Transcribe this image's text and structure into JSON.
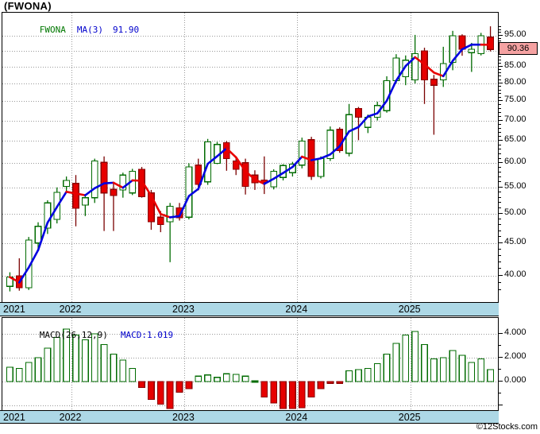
{
  "title": "(FWONA)",
  "watermark": "©12Stocks.com",
  "colors": {
    "up_outline": "#006B00",
    "up_fill": "#FFFFFF",
    "down_fill": "#E60000",
    "down_border": "#8B0000",
    "down_wick": "#7A0000",
    "ma_rising": "#0000E0",
    "ma_falling": "#E80000",
    "grid": "#999999",
    "axis_strip": "#ADD8E6",
    "badge_bg": "#F5A2A2",
    "legend_symbol": "#007700",
    "legend_blue": "#0000CC"
  },
  "main_chart": {
    "legend": {
      "symbol": "FWONA",
      "ma_label": "MA(3)",
      "ma_value": "91.90"
    },
    "price_axis": {
      "scale": "logarithmic",
      "last_price": 90.36,
      "last_price_label": "90.36"
    }
  },
  "chart_data": [
    {
      "type": "candlestick",
      "name": "FWONA monthly price",
      "title": "(FWONA)",
      "columns": [
        "open",
        "high",
        "low",
        "close"
      ],
      "candles": [
        [
          38.5,
          40.5,
          37.8,
          39.8
        ],
        [
          40.0,
          42.6,
          37.9,
          38.3
        ],
        [
          38.3,
          46.0,
          38.0,
          45.5
        ],
        [
          45.0,
          48.5,
          44.0,
          47.8
        ],
        [
          47.5,
          52.5,
          46.5,
          52.0
        ],
        [
          49.0,
          55.0,
          48.3,
          54.0
        ],
        [
          55.2,
          57.2,
          54.3,
          56.4
        ],
        [
          55.8,
          57.5,
          47.8,
          51.0
        ],
        [
          51.6,
          53.5,
          49.6,
          53.0
        ],
        [
          53.0,
          61.0,
          52.0,
          60.5
        ],
        [
          60.2,
          61.5,
          47.0,
          53.9
        ],
        [
          54.6,
          56.0,
          47.0,
          53.4
        ],
        [
          54.5,
          58.0,
          53.0,
          57.5
        ],
        [
          53.9,
          58.8,
          53.5,
          58.3
        ],
        [
          58.7,
          59.2,
          53.0,
          53.2
        ],
        [
          53.9,
          54.5,
          47.2,
          48.6
        ],
        [
          49.4,
          50.5,
          46.8,
          48.1
        ],
        [
          48.6,
          52.0,
          42.0,
          51.4
        ],
        [
          51.1,
          52.0,
          48.8,
          49.3
        ],
        [
          49.4,
          60.0,
          49.0,
          59.2
        ],
        [
          59.6,
          61.0,
          54.4,
          55.6
        ],
        [
          56.1,
          65.5,
          55.5,
          64.8
        ],
        [
          60.0,
          64.8,
          59.8,
          64.2
        ],
        [
          64.6,
          65.0,
          58.4,
          61.0
        ],
        [
          60.5,
          61.5,
          57.5,
          58.7
        ],
        [
          60.1,
          61.0,
          53.6,
          55.2
        ],
        [
          57.5,
          58.5,
          54.5,
          55.9
        ],
        [
          56.5,
          61.5,
          53.7,
          56.0
        ],
        [
          55.1,
          58.7,
          54.6,
          58.3
        ],
        [
          57.0,
          59.8,
          56.4,
          59.5
        ],
        [
          58.0,
          60.3,
          57.2,
          59.8
        ],
        [
          59.6,
          65.8,
          58.9,
          65.0
        ],
        [
          65.3,
          66.0,
          56.5,
          57.2
        ],
        [
          57.2,
          61.5,
          56.8,
          61.0
        ],
        [
          61.0,
          68.5,
          60.5,
          67.6
        ],
        [
          67.8,
          68.3,
          62.3,
          62.8
        ],
        [
          62.2,
          74.3,
          61.5,
          71.5
        ],
        [
          73.1,
          73.5,
          65.2,
          70.8
        ],
        [
          68.3,
          71.5,
          66.9,
          70.8
        ],
        [
          70.8,
          74.9,
          70.0,
          73.9
        ],
        [
          72.5,
          82.1,
          72.0,
          80.8
        ],
        [
          80.8,
          88.9,
          80.0,
          87.7
        ],
        [
          82.0,
          88.5,
          79.5,
          87.0
        ],
        [
          81.0,
          95.3,
          80.0,
          89.1
        ],
        [
          90.0,
          91.0,
          74.3,
          81.0
        ],
        [
          81.2,
          82.5,
          66.5,
          79.5
        ],
        [
          81.0,
          91.3,
          79.0,
          85.9
        ],
        [
          86.3,
          96.7,
          83.9,
          95.0
        ],
        [
          95.0,
          95.5,
          88.4,
          90.5
        ],
        [
          89.4,
          92.6,
          83.4,
          90.5
        ],
        [
          89.1,
          96.0,
          88.5,
          95.0
        ],
        [
          94.5,
          98.3,
          89.8,
          90.4
        ]
      ],
      "overlay_line": {
        "name": "MA(3)",
        "period": 3,
        "last_value": 91.9
      },
      "year_ticks": [
        {
          "label": "2021",
          "index": 0
        },
        {
          "label": "2022",
          "index": 7
        },
        {
          "label": "2023",
          "index": 19
        },
        {
          "label": "2024",
          "index": 31
        },
        {
          "label": "2025",
          "index": 43
        }
      ],
      "y_axis": {
        "labels": [
          {
            "label": "95.00",
            "value": 95
          },
          {
            "label": "90.00",
            "value": 90
          },
          {
            "label": "85.00",
            "value": 85
          },
          {
            "label": "80.00",
            "value": 80
          },
          {
            "label": "75.00",
            "value": 75
          },
          {
            "label": "70.00",
            "value": 70
          },
          {
            "label": "65.00",
            "value": 65
          },
          {
            "label": "60.00",
            "value": 60
          },
          {
            "label": "55.00",
            "value": 55
          },
          {
            "label": "50.00",
            "value": 50
          },
          {
            "label": "45.00",
            "value": 45
          },
          {
            "label": "40.00",
            "value": 40
          }
        ],
        "minor_tick_step": 1,
        "ylim": [
          36.5,
          99.5
        ]
      }
    },
    {
      "type": "bar",
      "name": "MACD histogram",
      "legend_name": "MACD(26,12,9)",
      "legend_value": "MACD:1.019",
      "values": [
        1.2,
        1.1,
        1.6,
        2.0,
        2.8,
        3.7,
        4.4,
        3.9,
        3.5,
        4.0,
        3.1,
        2.3,
        1.8,
        1.1,
        -0.5,
        -1.5,
        -1.9,
        -2.4,
        -0.9,
        -0.6,
        0.45,
        0.55,
        0.35,
        0.65,
        0.6,
        0.45,
        0.05,
        -1.3,
        -1.8,
        -2.5,
        -2.7,
        -2.2,
        -1.3,
        -0.6,
        -0.15,
        -0.15,
        0.9,
        1.0,
        1.1,
        1.5,
        2.3,
        3.2,
        3.9,
        4.2,
        3.1,
        1.9,
        2.0,
        2.6,
        2.2,
        1.6,
        1.9,
        1.0
      ],
      "y_axis": {
        "labels": [
          {
            "label": "4.000",
            "value": 4
          },
          {
            "label": "2.000",
            "value": 2
          },
          {
            "label": "0.000",
            "value": 0
          }
        ],
        "unlabeled_gridlines": [
          -2
        ],
        "minor_tick_step": 1,
        "ylim": [
          -3.0,
          4.6
        ]
      }
    }
  ]
}
